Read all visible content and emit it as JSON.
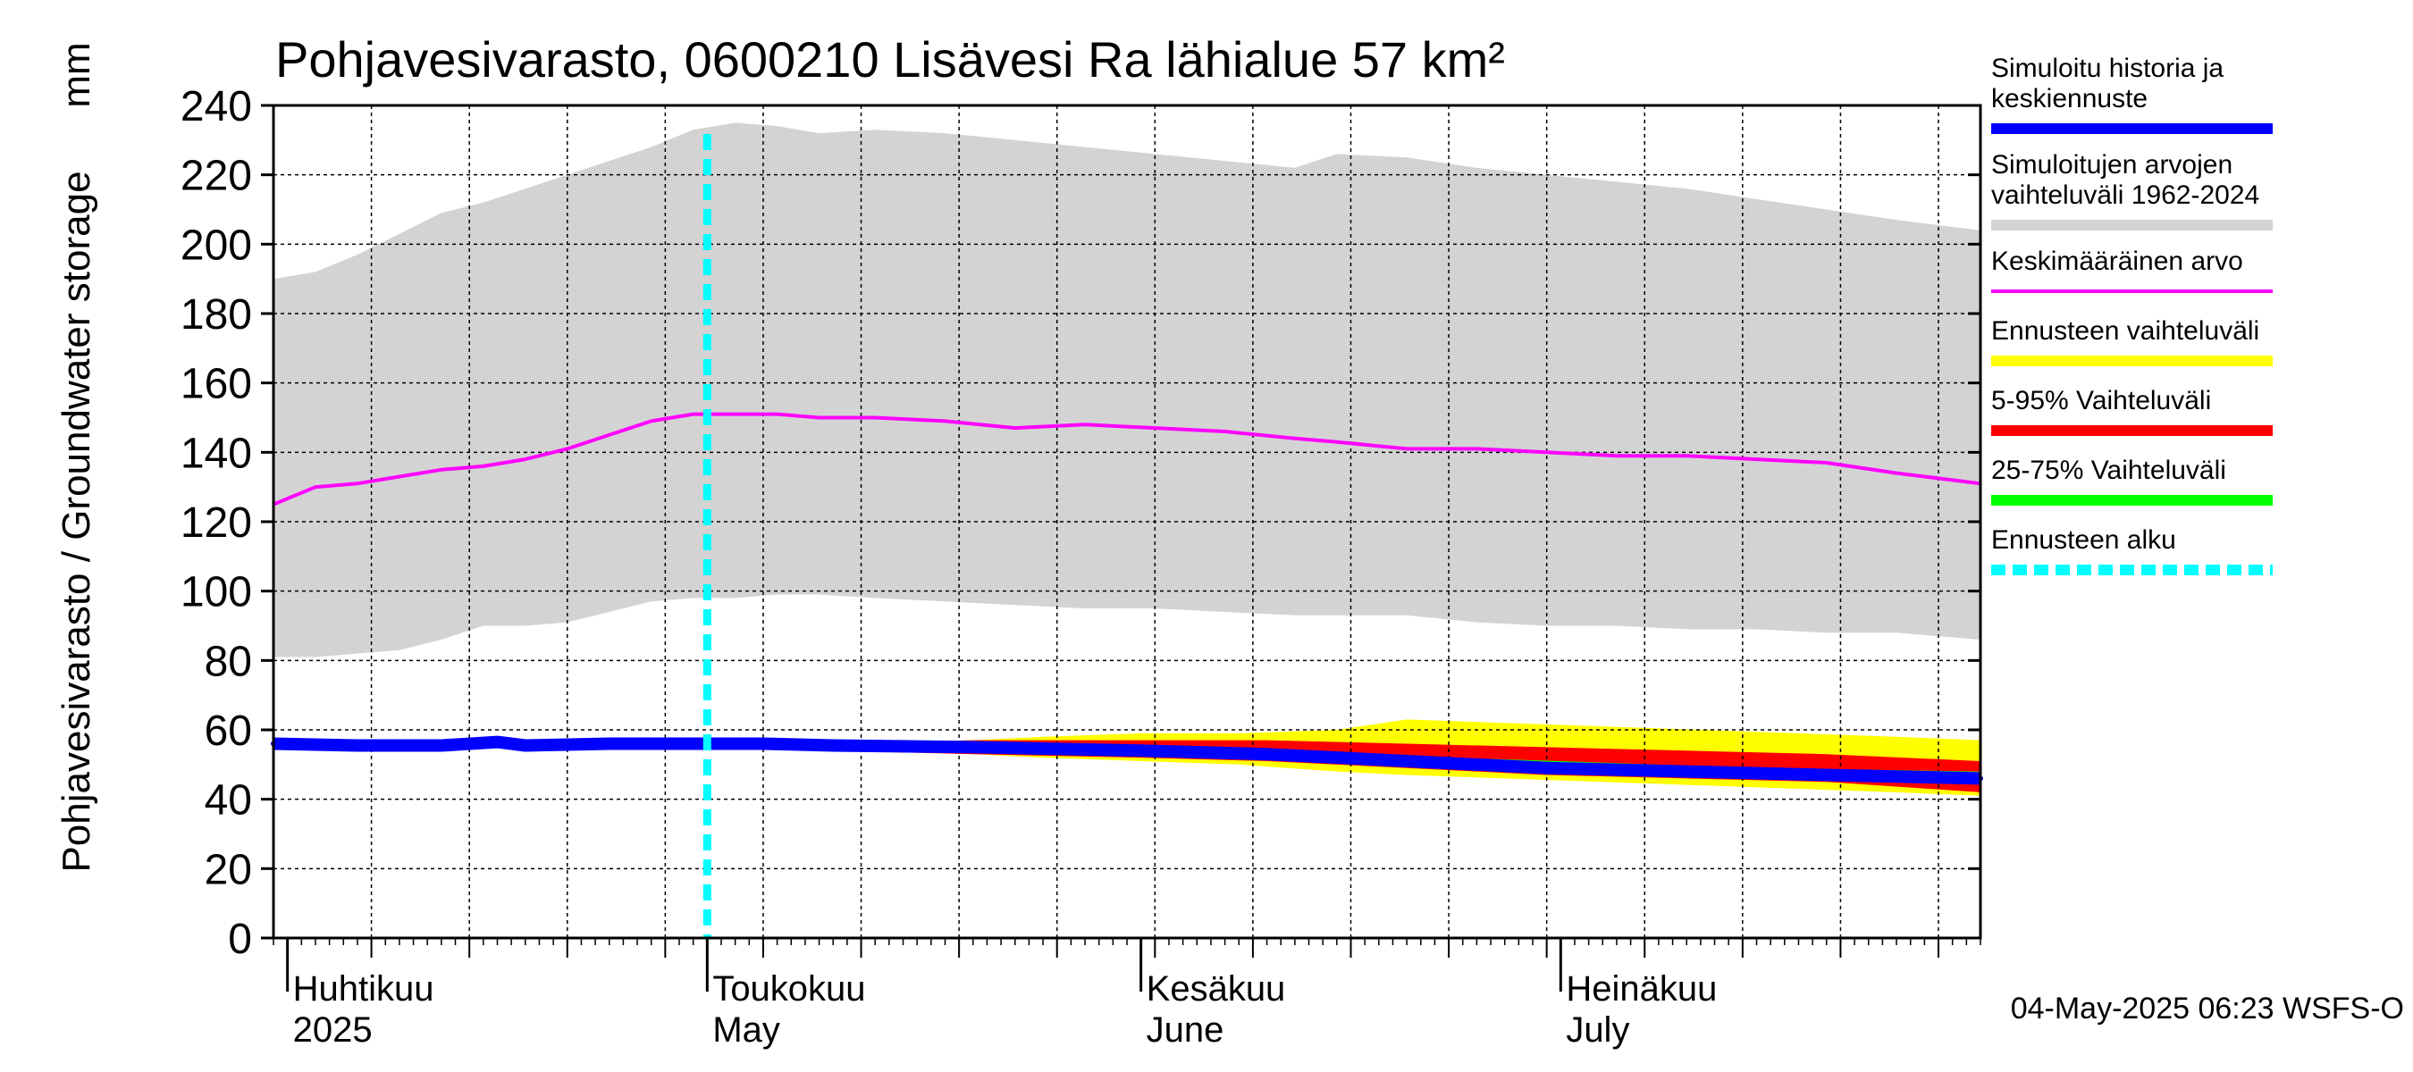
{
  "chart_data": {
    "type": "area",
    "title": "Pohjavesivarasto, 0600210 Lisävesi Ra lähialue 57 km²",
    "ylabel": "Pohjavesivarasto / Groundwater storage",
    "yunit": "mm",
    "ylim": [
      0,
      240
    ],
    "yticks": [
      0,
      20,
      40,
      60,
      80,
      100,
      120,
      140,
      160,
      180,
      200,
      220,
      240
    ],
    "xlim": [
      "2025-03-31",
      "2025-07-31"
    ],
    "grid": true,
    "legend_position": "right",
    "month_labels": [
      {
        "date": "2025-04-01",
        "fi": "Huhtikuu",
        "en": "2025"
      },
      {
        "date": "2025-05-01",
        "fi": "Toukokuu",
        "en": "May"
      },
      {
        "date": "2025-06-01",
        "fi": "Kesäkuu",
        "en": "June"
      },
      {
        "date": "2025-07-01",
        "fi": "Heinäkuu",
        "en": "July"
      }
    ],
    "legend": [
      {
        "label_lines": [
          "Simuloitu historia ja",
          "keskiennuste"
        ],
        "color": "#0000ff",
        "style": "solid"
      },
      {
        "label_lines": [
          "Simuloitujen arvojen",
          "vaihteluväli 1962-2024"
        ],
        "color": "#d3d3d3",
        "style": "solid"
      },
      {
        "label_lines": [
          "Keskimääräinen arvo"
        ],
        "color": "#ff00ff",
        "style": "solid"
      },
      {
        "label_lines": [
          "Ennusteen vaihteluväli"
        ],
        "color": "#ffff00",
        "style": "solid"
      },
      {
        "label_lines": [
          "5-95% Vaihteluväli"
        ],
        "color": "#ff0000",
        "style": "solid"
      },
      {
        "label_lines": [
          "25-75% Vaihteluväli"
        ],
        "color": "#00ff00",
        "style": "solid"
      },
      {
        "label_lines": [
          "Ennusteen alku"
        ],
        "color": "#00ffff",
        "style": "dashed"
      }
    ],
    "forecast_start": "2025-05-01",
    "series": [
      {
        "name": "Simuloitujen arvojen vaihteluväli 1962-2024",
        "kind": "band",
        "color": "#d3d3d3",
        "x": [
          "2025-03-31",
          "2025-04-03",
          "2025-04-06",
          "2025-04-09",
          "2025-04-12",
          "2025-04-15",
          "2025-04-18",
          "2025-04-21",
          "2025-04-24",
          "2025-04-27",
          "2025-04-30",
          "2025-05-03",
          "2025-05-06",
          "2025-05-09",
          "2025-05-13",
          "2025-05-18",
          "2025-05-23",
          "2025-05-28",
          "2025-06-02",
          "2025-06-07",
          "2025-06-12",
          "2025-06-15",
          "2025-06-20",
          "2025-06-25",
          "2025-06-30",
          "2025-07-05",
          "2025-07-10",
          "2025-07-15",
          "2025-07-20",
          "2025-07-25",
          "2025-07-31"
        ],
        "low": [
          81,
          81,
          82,
          83,
          86,
          90,
          90,
          91,
          94,
          97,
          98,
          98,
          99,
          99,
          98,
          97,
          96,
          95,
          95,
          94,
          93,
          93,
          93,
          91,
          90,
          90,
          89,
          89,
          88,
          88,
          86
        ],
        "high": [
          190,
          192,
          197,
          203,
          209,
          212,
          216,
          220,
          224,
          228,
          233,
          235,
          234,
          232,
          233,
          232,
          230,
          228,
          226,
          224,
          222,
          226,
          225,
          222,
          220,
          218,
          216,
          213,
          210,
          207,
          204
        ]
      },
      {
        "name": "Ennusteen vaihteluväli",
        "kind": "band",
        "color": "#ffff00",
        "x": [
          "2025-05-01",
          "2025-05-10",
          "2025-05-20",
          "2025-05-25",
          "2025-06-01",
          "2025-06-08",
          "2025-06-15",
          "2025-06-20",
          "2025-06-27",
          "2025-07-04",
          "2025-07-11",
          "2025-07-18",
          "2025-07-25",
          "2025-07-31"
        ],
        "low": [
          55,
          54,
          53,
          52,
          51,
          50,
          48,
          47,
          46,
          45,
          44,
          43,
          42,
          41
        ],
        "high": [
          55,
          56,
          57,
          58,
          59,
          59,
          60,
          63,
          62,
          61,
          60,
          59,
          58,
          57
        ]
      },
      {
        "name": "5-95% Vaihteluväli",
        "kind": "band",
        "color": "#ff0000",
        "x": [
          "2025-05-01",
          "2025-05-10",
          "2025-05-20",
          "2025-06-01",
          "2025-06-10",
          "2025-06-20",
          "2025-06-30",
          "2025-07-10",
          "2025-07-20",
          "2025-07-31"
        ],
        "low": [
          55,
          54,
          53,
          52,
          51,
          49,
          47,
          46,
          45,
          42
        ],
        "high": [
          55,
          56,
          57,
          57,
          57,
          56,
          55,
          54,
          53,
          51
        ]
      },
      {
        "name": "25-75% Vaihteluväli",
        "kind": "band",
        "color": "#00ff00",
        "x": [
          "2025-05-01",
          "2025-05-15",
          "2025-06-01",
          "2025-06-15",
          "2025-07-01",
          "2025-07-15",
          "2025-07-31"
        ],
        "low": [
          55,
          54,
          53,
          51,
          49,
          47,
          45
        ],
        "high": [
          55,
          55,
          54,
          53,
          51,
          49,
          48
        ]
      },
      {
        "name": "Keskimääräinen arvo",
        "kind": "line",
        "color": "#ff00ff",
        "x": [
          "2025-03-31",
          "2025-04-03",
          "2025-04-06",
          "2025-04-09",
          "2025-04-12",
          "2025-04-15",
          "2025-04-18",
          "2025-04-21",
          "2025-04-24",
          "2025-04-27",
          "2025-04-30",
          "2025-05-03",
          "2025-05-06",
          "2025-05-09",
          "2025-05-13",
          "2025-05-18",
          "2025-05-23",
          "2025-05-28",
          "2025-06-02",
          "2025-06-07",
          "2025-06-12",
          "2025-06-15",
          "2025-06-20",
          "2025-06-25",
          "2025-06-30",
          "2025-07-05",
          "2025-07-10",
          "2025-07-15",
          "2025-07-20",
          "2025-07-25",
          "2025-07-31"
        ],
        "y": [
          125,
          130,
          131,
          133,
          135,
          136,
          138,
          141,
          145,
          149,
          151,
          151,
          151,
          150,
          150,
          149,
          147,
          148,
          147,
          146,
          144,
          143,
          141,
          141,
          140,
          139,
          139,
          138,
          137,
          134,
          131
        ]
      },
      {
        "name": "Simuloitu historia ja keskiennuste",
        "kind": "line",
        "color": "#0000ff",
        "x": [
          "2025-03-31",
          "2025-04-06",
          "2025-04-12",
          "2025-04-16",
          "2025-04-18",
          "2025-04-24",
          "2025-04-30",
          "2025-05-05",
          "2025-05-10",
          "2025-05-20",
          "2025-06-01",
          "2025-06-10",
          "2025-06-20",
          "2025-06-30",
          "2025-07-10",
          "2025-07-20",
          "2025-07-31"
        ],
        "y": [
          56,
          55.5,
          55.5,
          56.5,
          55.5,
          56,
          56,
          56,
          55.5,
          55,
          54,
          53,
          51,
          49,
          48,
          47,
          46
        ]
      }
    ]
  },
  "footer": {
    "timestamp": "04-May-2025 06:23 WSFS-O"
  }
}
